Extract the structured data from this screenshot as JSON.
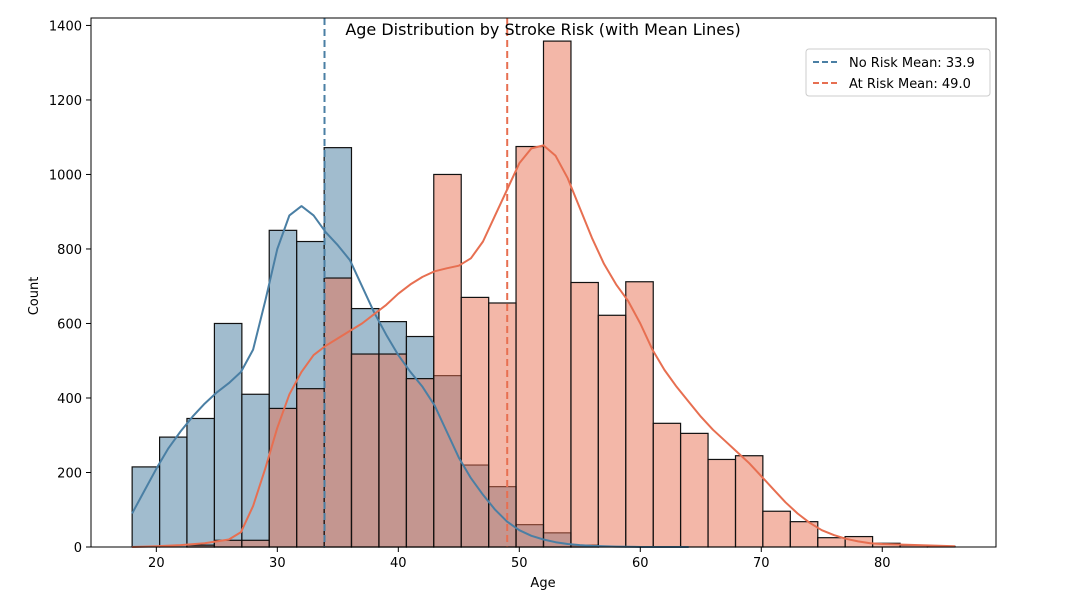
{
  "chart_data": {
    "type": "histogram",
    "title": "Age Distribution by Stroke Risk (with Mean Lines)",
    "xlabel": "Age",
    "ylabel": "Count",
    "xlim": [
      14.6,
      89.4
    ],
    "ylim": [
      0,
      1420
    ],
    "x_ticks": [
      20,
      30,
      40,
      50,
      60,
      70,
      80
    ],
    "y_ticks": [
      0,
      200,
      400,
      600,
      800,
      1000,
      1200,
      1400
    ],
    "bin_edges": [
      18,
      20.27,
      22.53,
      24.8,
      27.07,
      29.33,
      31.6,
      33.87,
      36.13,
      38.4,
      40.67,
      42.93,
      45.2,
      47.47,
      49.73,
      52,
      54.27,
      56.53,
      58.8,
      61.07,
      63.33,
      65.6,
      67.87,
      70.13,
      72.4,
      74.67,
      76.93,
      79.2,
      81.47,
      83.73,
      86
    ],
    "series": [
      {
        "name": "No Risk",
        "color": "#4a7fa4",
        "bar_color": "#6f98b4",
        "counts": [
          215,
          295,
          345,
          600,
          410,
          850,
          820,
          1072,
          640,
          605,
          565,
          460,
          220,
          162,
          60,
          38,
          5,
          0,
          0,
          0,
          0,
          0,
          0,
          0,
          0,
          0,
          0,
          0,
          0,
          0
        ],
        "kde": [
          [
            18,
            90
          ],
          [
            19,
            150
          ],
          [
            20,
            210
          ],
          [
            21,
            265
          ],
          [
            22,
            310
          ],
          [
            23,
            350
          ],
          [
            24,
            385
          ],
          [
            25,
            415
          ],
          [
            26,
            440
          ],
          [
            27,
            470
          ],
          [
            28,
            530
          ],
          [
            29,
            660
          ],
          [
            30,
            800
          ],
          [
            31,
            890
          ],
          [
            32,
            915
          ],
          [
            33,
            890
          ],
          [
            34,
            845
          ],
          [
            35,
            810
          ],
          [
            36,
            770
          ],
          [
            37,
            700
          ],
          [
            38,
            630
          ],
          [
            39,
            570
          ],
          [
            40,
            515
          ],
          [
            41,
            470
          ],
          [
            42,
            430
          ],
          [
            43,
            380
          ],
          [
            44,
            310
          ],
          [
            45,
            240
          ],
          [
            46,
            185
          ],
          [
            47,
            140
          ],
          [
            48,
            100
          ],
          [
            49,
            68
          ],
          [
            50,
            45
          ],
          [
            51,
            30
          ],
          [
            52,
            20
          ],
          [
            53,
            13
          ],
          [
            54,
            8
          ],
          [
            55,
            5
          ],
          [
            56,
            3
          ],
          [
            57,
            2
          ],
          [
            58,
            1
          ],
          [
            60,
            0
          ],
          [
            64,
            0
          ]
        ],
        "mean": 33.9,
        "mean_label": "No Risk Mean: 33.9"
      },
      {
        "name": "At Risk",
        "color": "#e76f51",
        "bar_color": "#eb9a86",
        "counts": [
          0,
          0,
          5,
          18,
          18,
          372,
          425,
          722,
          518,
          518,
          452,
          1000,
          670,
          655,
          1075,
          1358,
          710,
          622,
          712,
          332,
          305,
          235,
          245,
          96,
          68,
          25,
          28,
          10,
          5,
          2
        ],
        "kde": [
          [
            18,
            0
          ],
          [
            20,
            2
          ],
          [
            22,
            5
          ],
          [
            24,
            10
          ],
          [
            26,
            20
          ],
          [
            27,
            40
          ],
          [
            28,
            110
          ],
          [
            29,
            210
          ],
          [
            30,
            320
          ],
          [
            31,
            410
          ],
          [
            32,
            470
          ],
          [
            33,
            515
          ],
          [
            34,
            540
          ],
          [
            35,
            560
          ],
          [
            36,
            580
          ],
          [
            37,
            600
          ],
          [
            38,
            625
          ],
          [
            39,
            650
          ],
          [
            40,
            680
          ],
          [
            41,
            705
          ],
          [
            42,
            725
          ],
          [
            43,
            740
          ],
          [
            44,
            748
          ],
          [
            45,
            755
          ],
          [
            46,
            775
          ],
          [
            47,
            820
          ],
          [
            48,
            890
          ],
          [
            49,
            960
          ],
          [
            50,
            1030
          ],
          [
            51,
            1070
          ],
          [
            52,
            1078
          ],
          [
            53,
            1050
          ],
          [
            54,
            990
          ],
          [
            55,
            910
          ],
          [
            56,
            830
          ],
          [
            57,
            760
          ],
          [
            58,
            705
          ],
          [
            59,
            660
          ],
          [
            60,
            600
          ],
          [
            61,
            530
          ],
          [
            62,
            475
          ],
          [
            63,
            430
          ],
          [
            64,
            390
          ],
          [
            65,
            350
          ],
          [
            66,
            315
          ],
          [
            67,
            285
          ],
          [
            68,
            255
          ],
          [
            69,
            225
          ],
          [
            70,
            190
          ],
          [
            71,
            155
          ],
          [
            72,
            120
          ],
          [
            73,
            90
          ],
          [
            74,
            65
          ],
          [
            75,
            45
          ],
          [
            76,
            32
          ],
          [
            77,
            22
          ],
          [
            78,
            15
          ],
          [
            79,
            10
          ],
          [
            80,
            8
          ],
          [
            82,
            6
          ],
          [
            84,
            4
          ],
          [
            86,
            2
          ]
        ],
        "mean": 49.0,
        "mean_label": "At Risk Mean: 49.0"
      }
    ],
    "legend_position": "top-right",
    "grid": false
  }
}
